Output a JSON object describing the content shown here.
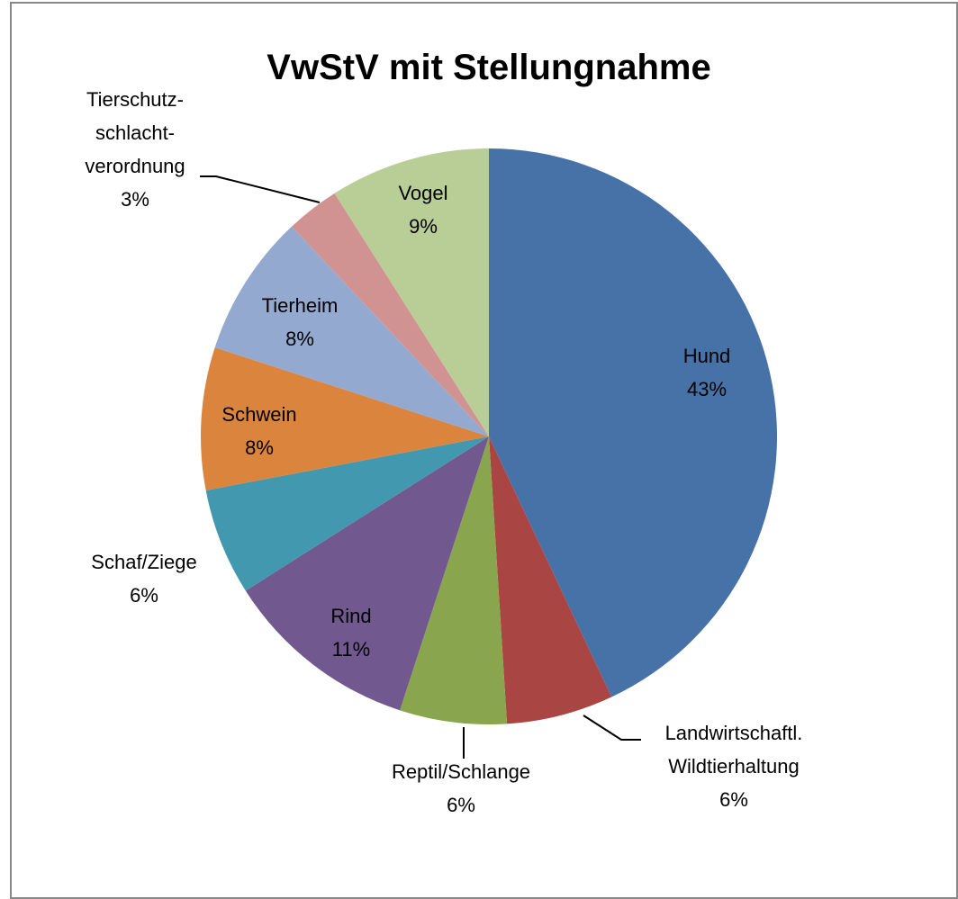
{
  "chart_data": {
    "type": "pie",
    "title": "VwStV mit Stellungnahme",
    "categories": [
      "Hund",
      "Landwirtschaftl. Wildtierhaltung",
      "Reptil/Schlange",
      "Rind",
      "Schaf/Ziege",
      "Schwein",
      "Tierheim",
      "Tierschutz- schlacht- verordnung",
      "Vogel"
    ],
    "values": [
      43,
      6,
      6,
      11,
      6,
      8,
      8,
      3,
      9
    ],
    "value_labels": [
      "43%",
      "6%",
      "6%",
      "11%",
      "6%",
      "8%",
      "8%",
      "3%",
      "9%"
    ],
    "colors": [
      "#4672a8",
      "#a94643",
      "#89a54e",
      "#71588f",
      "#4198af",
      "#db843d",
      "#93a9cf",
      "#d19392",
      "#b9cd96"
    ]
  }
}
